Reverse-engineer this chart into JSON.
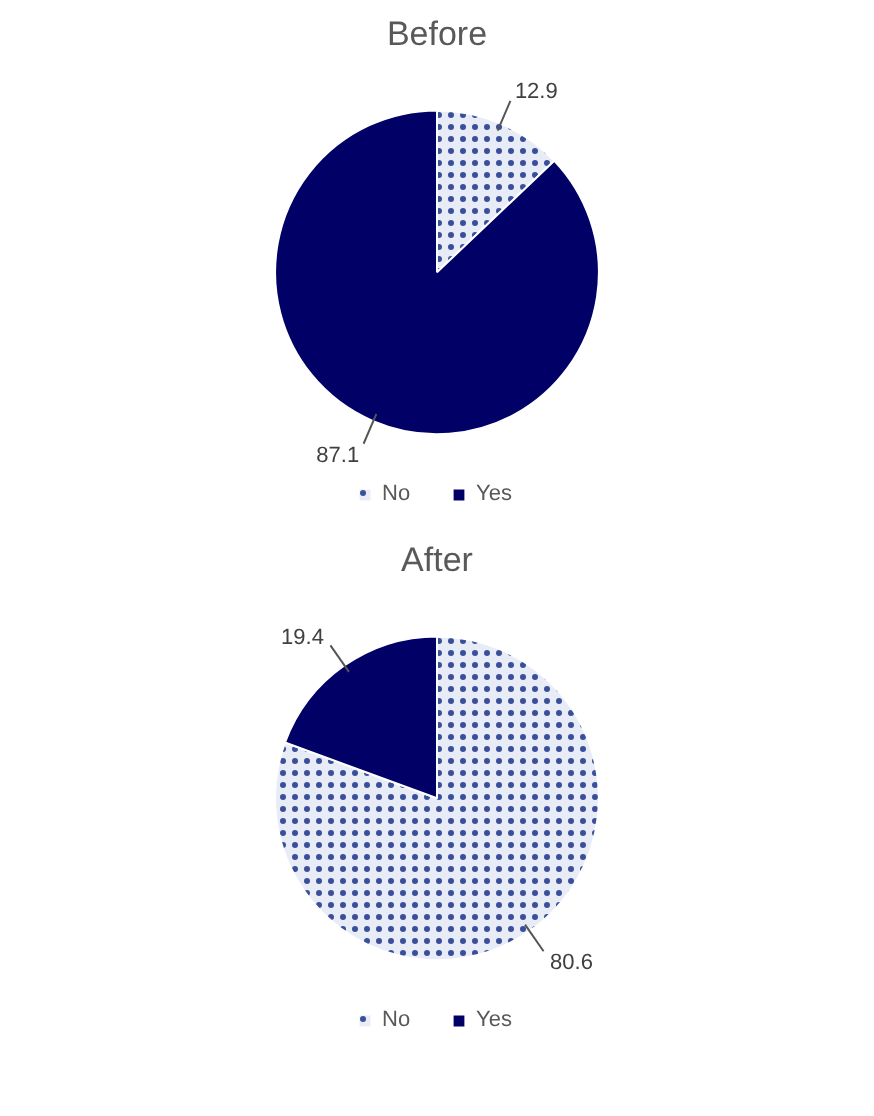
{
  "chart_data": [
    {
      "type": "pie",
      "title": "Before",
      "categories": [
        "No",
        "Yes"
      ],
      "values": [
        12.9,
        87.1
      ],
      "colors": [
        "#e8ecf6",
        "#000066"
      ],
      "data_labels": true,
      "legend": "bottom"
    },
    {
      "type": "pie",
      "title": "After",
      "categories": [
        "No",
        "Yes"
      ],
      "values": [
        80.6,
        19.4
      ],
      "colors": [
        "#e8ecf6",
        "#000066"
      ],
      "data_labels": true,
      "legend": "bottom"
    }
  ]
}
